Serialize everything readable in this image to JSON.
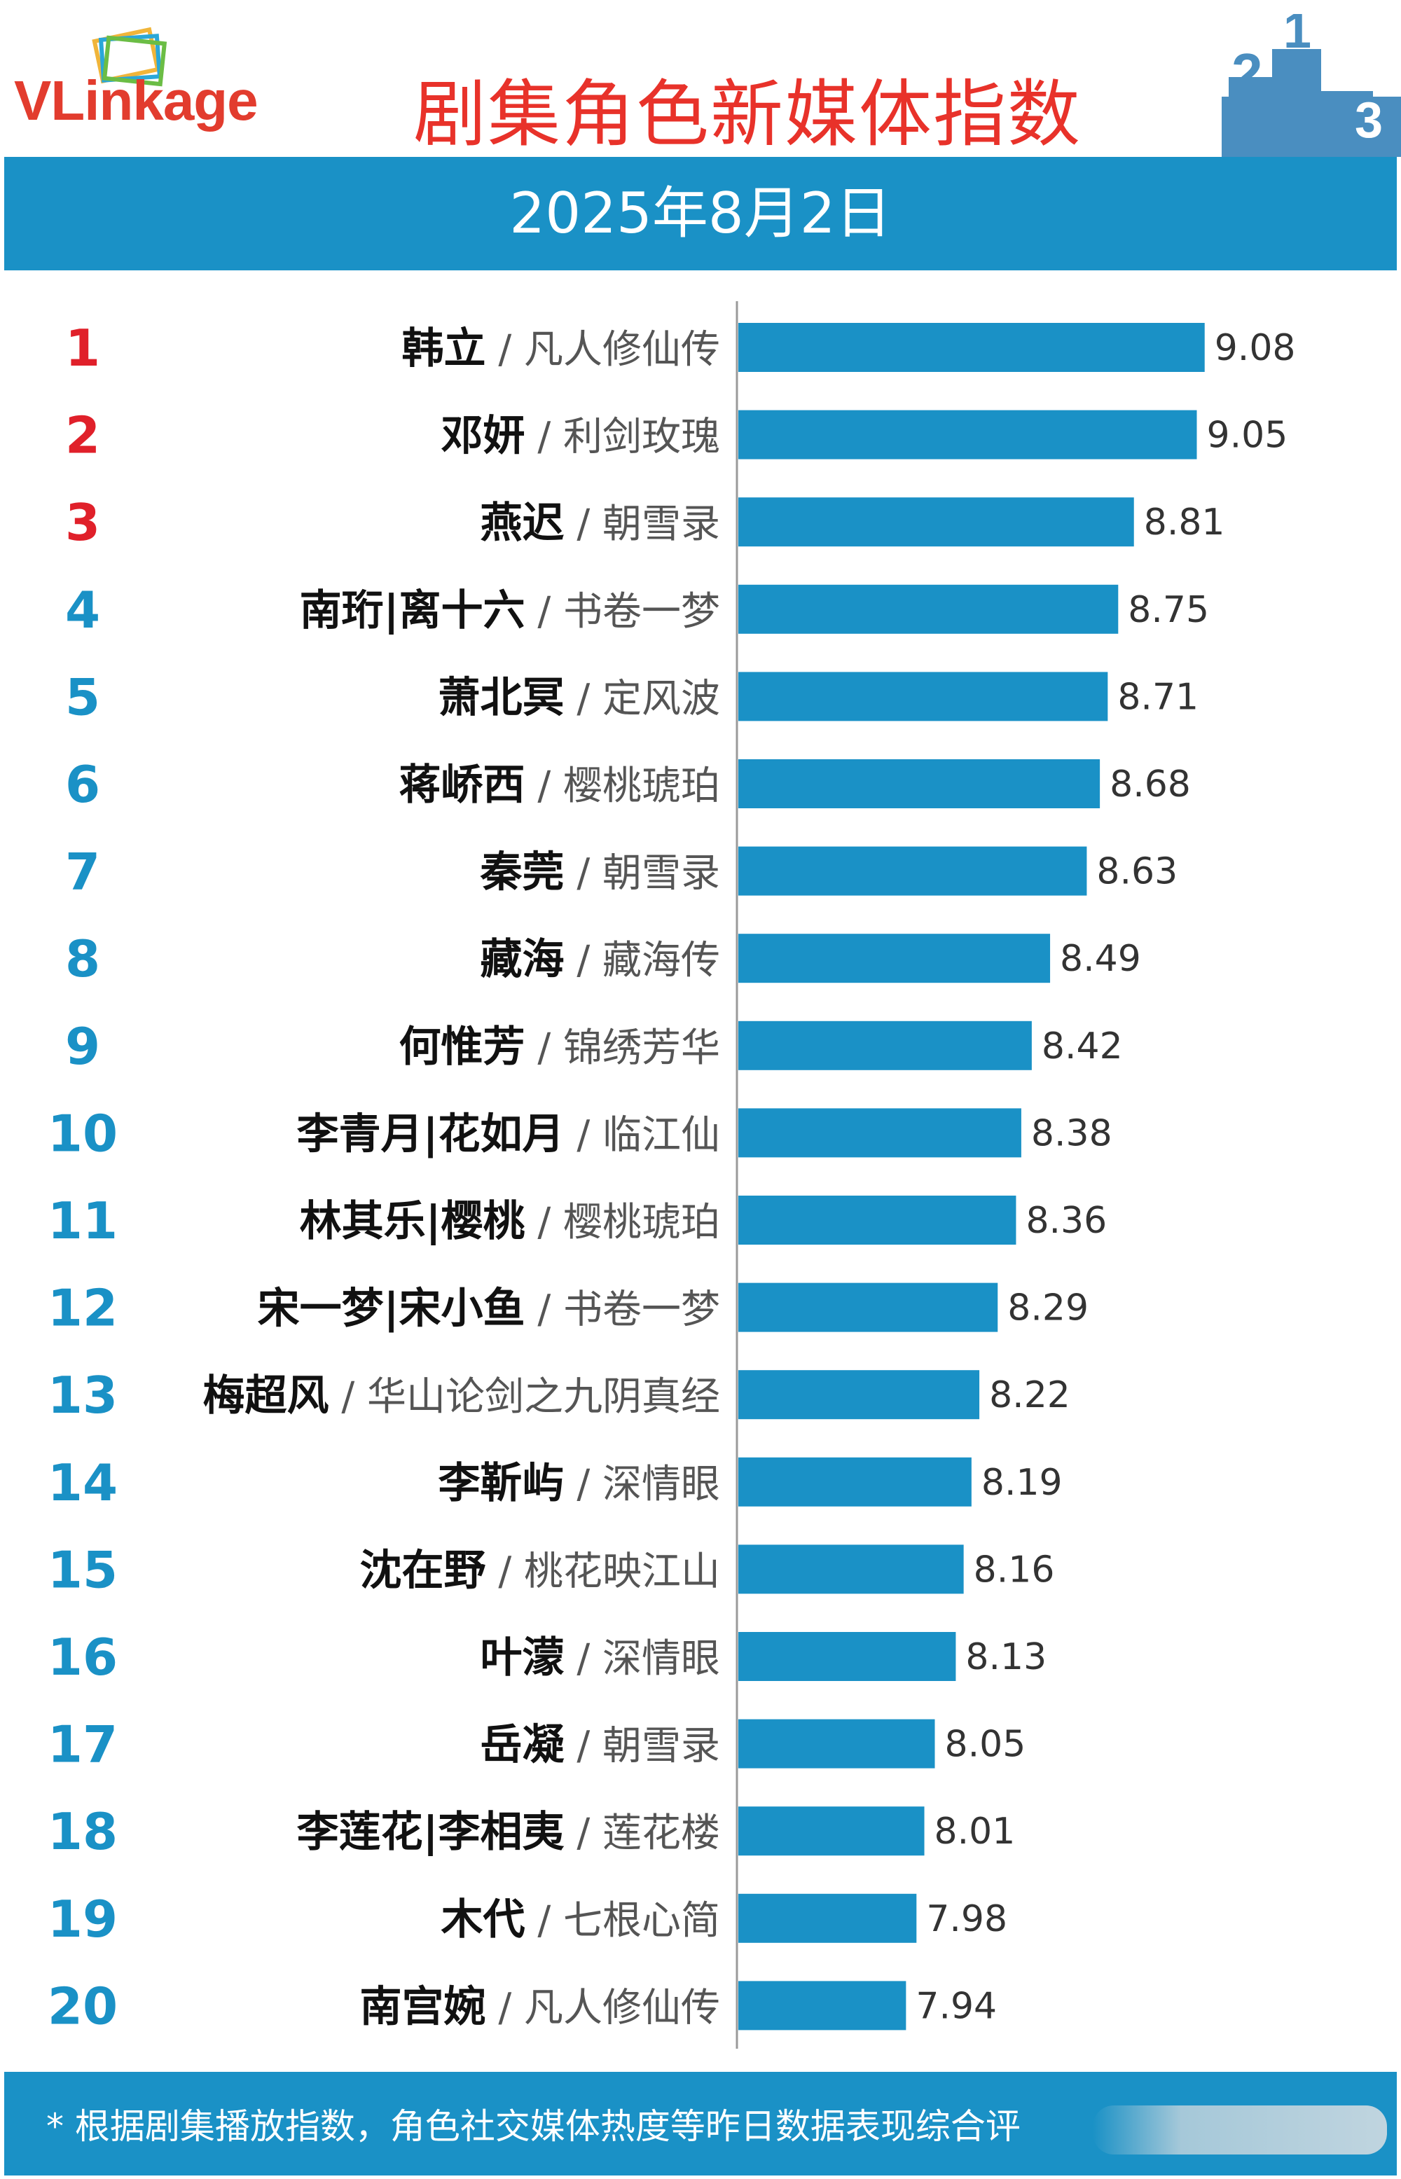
{
  "header": {
    "logo": "VLinkage",
    "title": "剧集角色新媒体指数",
    "podium": [
      "2",
      "1",
      "3"
    ]
  },
  "date": "2025年8月2日",
  "chart_data": {
    "type": "bar",
    "orientation": "horizontal",
    "xlim": [
      7.3,
      9.3
    ],
    "bar_color": "#1a91c6",
    "rank_colors": {
      "top3": "#e0202a",
      "rest": "#1a91c6"
    },
    "rows": [
      {
        "rank": "1",
        "character": "韩立",
        "drama": "凡人修仙传",
        "value": 9.08,
        "label": "9.08"
      },
      {
        "rank": "2",
        "character": "邓妍",
        "drama": "利剑玫瑰",
        "value": 9.05,
        "label": "9.05"
      },
      {
        "rank": "3",
        "character": "燕迟",
        "drama": "朝雪录",
        "value": 8.81,
        "label": "8.81"
      },
      {
        "rank": "4",
        "character": "南珩|离十六",
        "drama": "书卷一梦",
        "value": 8.75,
        "label": "8.75"
      },
      {
        "rank": "5",
        "character": "萧北冥",
        "drama": "定风波",
        "value": 8.71,
        "label": "8.71"
      },
      {
        "rank": "6",
        "character": "蒋峤西",
        "drama": "樱桃琥珀",
        "value": 8.68,
        "label": "8.68"
      },
      {
        "rank": "7",
        "character": "秦莞",
        "drama": "朝雪录",
        "value": 8.63,
        "label": "8.63"
      },
      {
        "rank": "8",
        "character": "藏海",
        "drama": "藏海传",
        "value": 8.49,
        "label": "8.49"
      },
      {
        "rank": "9",
        "character": "何惟芳",
        "drama": "锦绣芳华",
        "value": 8.42,
        "label": "8.42"
      },
      {
        "rank": "10",
        "character": "李青月|花如月",
        "drama": "临江仙",
        "value": 8.38,
        "label": "8.38"
      },
      {
        "rank": "11",
        "character": "林其乐|樱桃",
        "drama": "樱桃琥珀",
        "value": 8.36,
        "label": "8.36"
      },
      {
        "rank": "12",
        "character": "宋一梦|宋小鱼",
        "drama": "书卷一梦",
        "value": 8.29,
        "label": "8.29"
      },
      {
        "rank": "13",
        "character": "梅超风",
        "drama": "华山论剑之九阴真经",
        "value": 8.22,
        "label": "8.22"
      },
      {
        "rank": "14",
        "character": "李靳屿",
        "drama": "深情眼",
        "value": 8.19,
        "label": "8.19"
      },
      {
        "rank": "15",
        "character": "沈在野",
        "drama": "桃花映江山",
        "value": 8.16,
        "label": "8.16"
      },
      {
        "rank": "16",
        "character": "叶濛",
        "drama": "深情眼",
        "value": 8.13,
        "label": "8.13"
      },
      {
        "rank": "17",
        "character": "岳凝",
        "drama": "朝雪录",
        "value": 8.05,
        "label": "8.05"
      },
      {
        "rank": "18",
        "character": "李莲花|李相夷",
        "drama": "莲花楼",
        "value": 8.01,
        "label": "8.01"
      },
      {
        "rank": "19",
        "character": "木代",
        "drama": "七根心简",
        "value": 7.98,
        "label": "7.98"
      },
      {
        "rank": "20",
        "character": "南宫婉",
        "drama": "凡人修仙传",
        "value": 7.94,
        "label": "7.94"
      }
    ]
  },
  "footer": {
    "note": "* 根据剧集播放指数，角色社交媒体热度等昨日数据表现综合评"
  }
}
